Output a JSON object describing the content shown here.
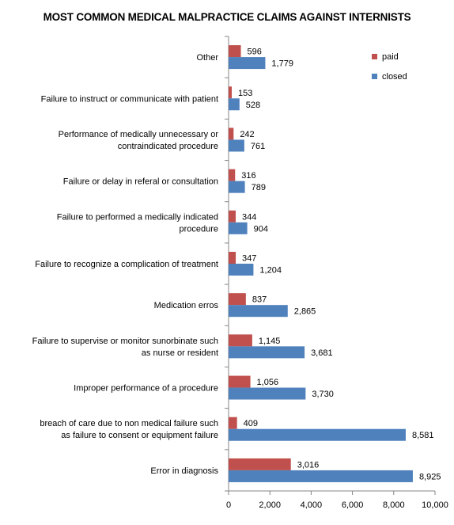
{
  "chart_data": {
    "type": "bar",
    "orientation": "horizontal",
    "title": "MOST COMMON MEDICAL MALPRACTICE CLAIMS AGAINST INTERNISTS",
    "categories": [
      [
        "Other"
      ],
      [
        "Failure to instruct or communicate with patient"
      ],
      [
        "Performance of medically unnecessary or",
        "contraindicated procedure"
      ],
      [
        "Failure or delay in referal or consultation"
      ],
      [
        "Failure to performed a medically indicated",
        "procedure"
      ],
      [
        "Failure to recognize a complication of treatment"
      ],
      [
        "Medication erros"
      ],
      [
        "Failure to supervise or monitor sunorbinate such",
        "as nurse or resident"
      ],
      [
        "Improper performance of a procedure"
      ],
      [
        "breach of care due to non medical failure such",
        "as failure to consent or equipment failure"
      ],
      [
        "Error in diagnosis"
      ]
    ],
    "series": [
      {
        "name": "paid",
        "color": "#c0504d",
        "values": [
          596,
          153,
          242,
          316,
          344,
          347,
          837,
          1145,
          1056,
          409,
          3016
        ],
        "labels": [
          "596",
          "153",
          "242",
          "316",
          "344",
          "347",
          "837",
          "1,145",
          "1,056",
          "409",
          "3,016"
        ]
      },
      {
        "name": "closed",
        "color": "#4f81bd",
        "values": [
          1779,
          528,
          761,
          789,
          904,
          1204,
          2865,
          3681,
          3730,
          8581,
          8925
        ],
        "labels": [
          "1,779",
          "528",
          "761",
          "789",
          "904",
          "1,204",
          "2,865",
          "3,681",
          "3,730",
          "8,581",
          "8,925"
        ]
      }
    ],
    "xlim": [
      0,
      10000
    ],
    "xticks": [
      0,
      2000,
      4000,
      6000,
      8000,
      10000
    ],
    "xtick_labels": [
      "0",
      "2,000",
      "4,000",
      "6,000",
      "8,000",
      "10,000"
    ],
    "legend_position": "top-right",
    "grid": false
  }
}
